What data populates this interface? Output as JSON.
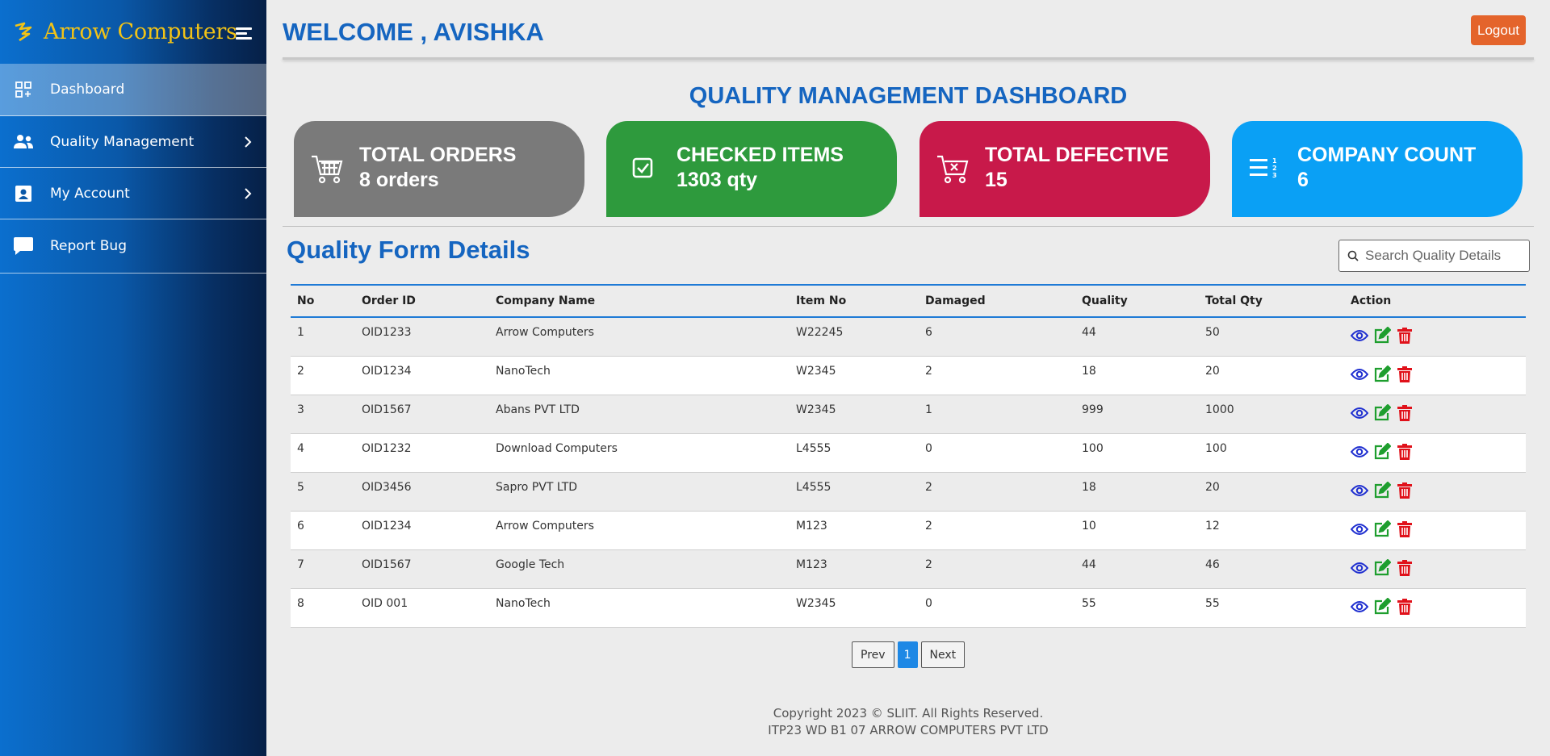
{
  "sidebar": {
    "brand": "Arrow Computers",
    "items": [
      {
        "label": "Dashboard",
        "icon": "dashboard-icon"
      },
      {
        "label": "Quality Management",
        "icon": "users-icon"
      },
      {
        "label": "My Account",
        "icon": "account-icon"
      },
      {
        "label": "Report Bug",
        "icon": "chat-icon"
      }
    ]
  },
  "header": {
    "welcome": "WELCOME , AVISHKA",
    "logout": "Logout"
  },
  "dashboard": {
    "title": "QUALITY MANAGEMENT DASHBOARD",
    "cards": [
      {
        "title": "TOTAL ORDERS",
        "value": "8 orders",
        "icon": "cart-icon",
        "color": "#7a7a7a"
      },
      {
        "title": "CHECKED ITEMS",
        "value": "1303 qty",
        "icon": "checkbox-icon",
        "color": "#2e9a3d"
      },
      {
        "title": "TOTAL DEFECTIVE",
        "value": "15",
        "icon": "cart-x-icon",
        "color": "#c8194a"
      },
      {
        "title": "COMPANY COUNT",
        "value": "6",
        "icon": "numbered-list-icon",
        "color": "#0aa0f5"
      }
    ]
  },
  "details": {
    "title": "Quality Form Details",
    "search_placeholder": "Search Quality Details",
    "columns": [
      "No",
      "Order ID",
      "Company Name",
      "Item No",
      "Damaged",
      "Quality",
      "Total Qty",
      "Action"
    ],
    "rows": [
      [
        "1",
        "OID1233",
        "Arrow Computers",
        "W22245",
        "6",
        "44",
        "50"
      ],
      [
        "2",
        "OID1234",
        "NanoTech",
        "W2345",
        "2",
        "18",
        "20"
      ],
      [
        "3",
        "OID1567",
        "Abans PVT LTD",
        "W2345",
        "1",
        "999",
        "1000"
      ],
      [
        "4",
        "OID1232",
        "Download Computers",
        "L4555",
        "0",
        "100",
        "100"
      ],
      [
        "5",
        "OID3456",
        "Sapro PVT LTD",
        "L4555",
        "2",
        "18",
        "20"
      ],
      [
        "6",
        "OID1234",
        "Arrow Computers",
        "M123",
        "2",
        "10",
        "12"
      ],
      [
        "7",
        "OID1567",
        "Google Tech",
        "M123",
        "2",
        "44",
        "46"
      ],
      [
        "8",
        "OID 001",
        "NanoTech",
        "W2345",
        "0",
        "55",
        "55"
      ]
    ]
  },
  "pagination": {
    "prev": "Prev",
    "current": "1",
    "next": "Next"
  },
  "footer": {
    "copyright": "Copyright 2023 © SLIIT. All Rights Reserved.",
    "company": "ITP23 WD B1 07 ARROW COMPUTERS PVT LTD"
  },
  "colors": {
    "accent": "#1565c0",
    "logout": "#e4642b",
    "view": "#1f2fd0",
    "edit": "#1e9e2e",
    "delete": "#e0111a"
  }
}
